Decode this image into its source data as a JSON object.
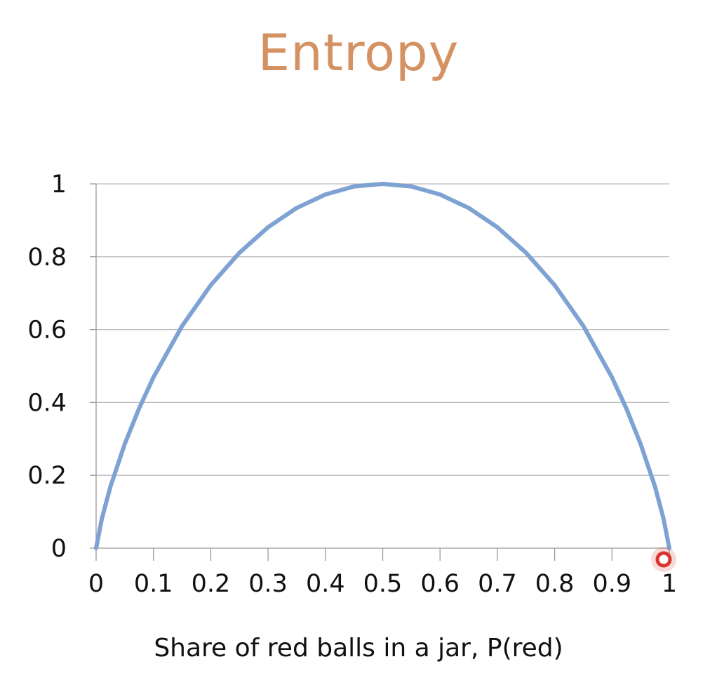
{
  "chart_data": {
    "type": "line",
    "title": "Entropy",
    "xlabel": "Share of red balls in a jar, P(red)",
    "ylabel": "",
    "xlim": [
      0,
      1
    ],
    "ylim": [
      0,
      1
    ],
    "x_ticks": [
      "0",
      "0.1",
      "0.2",
      "0.3",
      "0.4",
      "0.5",
      "0.6",
      "0.7",
      "0.8",
      "0.9",
      "1"
    ],
    "y_ticks": [
      "0",
      "0.2",
      "0.4",
      "0.6",
      "0.8",
      "1"
    ],
    "grid": "horizontal",
    "legend": "none",
    "series": [
      {
        "color": "#7ea2d2",
        "x": [
          0,
          0.01,
          0.025,
          0.05,
          0.075,
          0.1,
          0.15,
          0.2,
          0.25,
          0.3,
          0.35,
          0.4,
          0.45,
          0.5,
          0.55,
          0.6,
          0.65,
          0.7,
          0.75,
          0.8,
          0.85,
          0.9,
          0.925,
          0.95,
          0.975,
          0.99,
          1
        ],
        "y": [
          0,
          0.081,
          0.169,
          0.286,
          0.384,
          0.469,
          0.61,
          0.722,
          0.811,
          0.881,
          0.934,
          0.971,
          0.993,
          1,
          0.993,
          0.971,
          0.934,
          0.881,
          0.811,
          0.722,
          0.61,
          0.469,
          0.384,
          0.286,
          0.169,
          0.081,
          0
        ]
      }
    ],
    "marker": {
      "x": 1,
      "y": 0,
      "color": "#d9342b"
    }
  }
}
